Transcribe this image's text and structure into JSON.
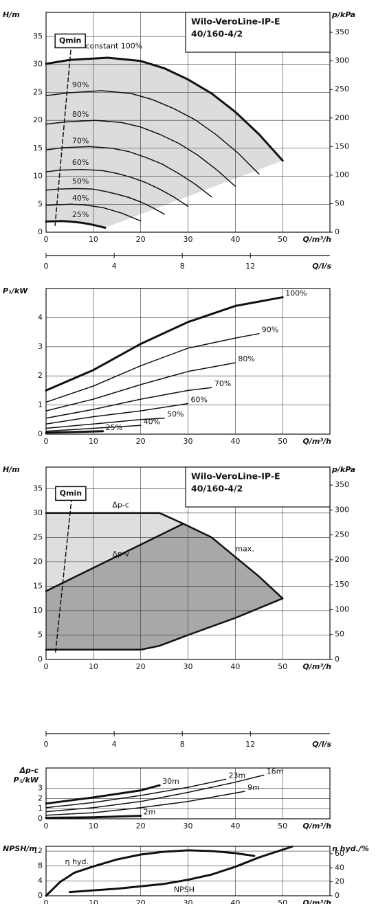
{
  "chart_data": [
    {
      "type": "line",
      "ylabel": "H/m",
      "y2label": "p/kPa",
      "xlabel": "Q/m³/h",
      "x2label": "Q/l/s",
      "xlim": [
        0,
        60
      ],
      "xticks": [
        0,
        10,
        20,
        30,
        40,
        50
      ],
      "x2lim": [
        0,
        16.67
      ],
      "x2ticks": [
        0,
        4,
        8,
        12
      ],
      "ylim": [
        0,
        39.3
      ],
      "yticks": [
        0,
        5,
        10,
        15,
        20,
        25,
        30,
        35
      ],
      "y2lim": [
        0,
        385
      ],
      "y2ticks": [
        0,
        50,
        100,
        150,
        200,
        250,
        300,
        350
      ],
      "grid": true,
      "info_box": [
        "Wilo-VeroLine-IP-E",
        "40/160-4/2"
      ],
      "series": [
        {
          "name": "n=constant 100%",
          "color": "#111111",
          "width": 3,
          "x": [
            0,
            5,
            13,
            20,
            25,
            30,
            35,
            40,
            45,
            50
          ],
          "values": [
            30.1,
            30.8,
            31.2,
            30.6,
            29.3,
            27.3,
            24.8,
            21.5,
            17.5,
            12.8
          ]
        },
        {
          "name": "90%",
          "color": "#111111",
          "width": 1.5,
          "x": [
            0,
            4.5,
            11.7,
            18,
            22.5,
            27,
            31.5,
            36,
            40.5,
            45
          ],
          "values": [
            24.4,
            24.9,
            25.3,
            24.8,
            23.7,
            22.1,
            20.1,
            17.4,
            14.2,
            10.4
          ]
        },
        {
          "name": "80%",
          "color": "#111111",
          "width": 1.5,
          "x": [
            0,
            4,
            10.4,
            16,
            20,
            24,
            28,
            32,
            36,
            40
          ],
          "values": [
            19.3,
            19.7,
            20,
            19.6,
            18.8,
            17.5,
            15.9,
            13.8,
            11.2,
            8.2
          ]
        },
        {
          "name": "70%",
          "color": "#111111",
          "width": 1.5,
          "x": [
            0,
            3.5,
            9.1,
            14,
            17.5,
            21,
            24.5,
            28,
            31.5,
            35
          ],
          "values": [
            14.7,
            15.1,
            15.3,
            15,
            14.4,
            13.4,
            12.2,
            10.5,
            8.6,
            6.3
          ]
        },
        {
          "name": "60%",
          "color": "#111111",
          "width": 1.5,
          "x": [
            0,
            3,
            7.8,
            12,
            15,
            18,
            21,
            24,
            27,
            30
          ],
          "values": [
            10.8,
            11.1,
            11.2,
            11,
            10.5,
            9.8,
            8.9,
            7.7,
            6.3,
            4.6
          ]
        },
        {
          "name": "50%",
          "color": "#111111",
          "width": 1.5,
          "x": [
            0,
            2.5,
            6.5,
            10,
            12.5,
            15,
            17.5,
            20,
            22.5,
            25
          ],
          "values": [
            7.5,
            7.7,
            7.8,
            7.7,
            7.3,
            6.8,
            6.2,
            5.4,
            4.4,
            3.2
          ]
        },
        {
          "name": "40%",
          "color": "#111111",
          "width": 1.5,
          "x": [
            0,
            5.2,
            8,
            12,
            16,
            20
          ],
          "values": [
            4.8,
            5,
            4.9,
            4.4,
            3.4,
            2
          ]
        },
        {
          "name": "25%",
          "color": "#111111",
          "width": 3,
          "x": [
            0,
            3.25,
            5,
            7.5,
            10,
            12.5
          ],
          "values": [
            1.9,
            2,
            1.9,
            1.7,
            1.3,
            0.8
          ]
        },
        {
          "name": "Qmin",
          "color": "#111111",
          "width": 1.5,
          "style": "dashed",
          "x": [
            1.9,
            5.4
          ],
          "values": [
            1.2,
            34.2
          ]
        }
      ]
    },
    {
      "type": "line",
      "ylabel": "P₁/kW",
      "xlabel": "Q/m³/h",
      "xlim": [
        0,
        60
      ],
      "xticks": [
        0,
        10,
        20,
        30,
        40,
        50
      ],
      "ylim": [
        0,
        5
      ],
      "yticks": [
        0,
        1,
        2,
        3,
        4
      ],
      "grid": true,
      "series": [
        {
          "name": "100%",
          "color": "#111111",
          "width": 3,
          "x": [
            0,
            10,
            20,
            30,
            40,
            50
          ],
          "values": [
            1.5,
            2.2,
            3.1,
            3.85,
            4.4,
            4.7
          ]
        },
        {
          "name": "90%",
          "color": "#111111",
          "width": 1.5,
          "x": [
            0,
            10,
            20,
            30,
            40,
            45
          ],
          "values": [
            1.1,
            1.65,
            2.35,
            2.95,
            3.3,
            3.45
          ]
        },
        {
          "name": "80%",
          "color": "#111111",
          "width": 1.5,
          "x": [
            0,
            10,
            20,
            30,
            40
          ],
          "values": [
            0.8,
            1.2,
            1.7,
            2.15,
            2.45
          ]
        },
        {
          "name": "70%",
          "color": "#111111",
          "width": 1.5,
          "x": [
            0,
            10,
            20,
            30,
            35
          ],
          "values": [
            0.55,
            0.85,
            1.2,
            1.5,
            1.6
          ]
        },
        {
          "name": "60%",
          "color": "#111111",
          "width": 1.5,
          "x": [
            0,
            10,
            20,
            30
          ],
          "values": [
            0.35,
            0.6,
            0.8,
            1.05
          ]
        },
        {
          "name": "50%",
          "color": "#111111",
          "width": 1.5,
          "x": [
            0,
            10,
            20,
            25
          ],
          "values": [
            0.2,
            0.35,
            0.5,
            0.55
          ]
        },
        {
          "name": "40%",
          "color": "#111111",
          "width": 1.5,
          "x": [
            0,
            10,
            20
          ],
          "values": [
            0.1,
            0.2,
            0.3
          ]
        },
        {
          "name": "25%",
          "color": "#111111",
          "width": 3,
          "x": [
            0,
            12
          ],
          "values": [
            0.05,
            0.1
          ]
        }
      ]
    },
    {
      "type": "line",
      "ylabel": "H/m",
      "y2label": "p/kPa",
      "xlabel": "Q/m³/h",
      "x2label": "Q/l/s",
      "xlim": [
        0,
        60
      ],
      "xticks": [
        0,
        10,
        20,
        30,
        40,
        50
      ],
      "x2lim": [
        0,
        16.67
      ],
      "x2ticks": [
        0,
        4,
        8,
        12
      ],
      "ylim": [
        0,
        39.4
      ],
      "yticks": [
        0,
        5,
        10,
        15,
        20,
        25,
        30,
        35
      ],
      "y2lim": [
        0,
        386
      ],
      "y2ticks": [
        0,
        50,
        100,
        150,
        200,
        250,
        300,
        350
      ],
      "grid": true,
      "info_box": [
        "Wilo-VeroLine-IP-E",
        "40/160-4/2"
      ],
      "series": [
        {
          "name": "Δp-c",
          "color": "#111111",
          "width": 2.5,
          "x": [
            0,
            24,
            29
          ],
          "values": [
            30,
            30,
            27.8
          ]
        },
        {
          "name": "Δp-v",
          "color": "#111111",
          "width": 2.5,
          "x": [
            0,
            29
          ],
          "values": [
            14,
            27.8
          ]
        },
        {
          "name": "max.",
          "color": "#111111",
          "width": 2.5,
          "x": [
            29,
            35,
            40,
            45,
            50
          ],
          "values": [
            27.8,
            25,
            21,
            17,
            12.5
          ]
        },
        {
          "color": "#111111",
          "width": 2.5,
          "x": [
            0,
            20,
            24,
            30,
            40,
            50
          ],
          "values": [
            2,
            2,
            2.8,
            5,
            8.5,
            12.5
          ]
        },
        {
          "name": "Qmin",
          "color": "#111111",
          "width": 1.5,
          "style": "dashed",
          "x": [
            2,
            5.5
          ],
          "values": [
            1.5,
            34
          ]
        }
      ]
    },
    {
      "type": "line",
      "ylabel_lines": [
        "Δp-c",
        "P₁/kW"
      ],
      "xlabel": "Q/m³/h",
      "xlim": [
        0,
        60
      ],
      "xticks": [
        0,
        10,
        20,
        30,
        40,
        50
      ],
      "ylim": [
        0,
        5
      ],
      "yticks": [
        0,
        1,
        2,
        3
      ],
      "grid": true,
      "series": [
        {
          "name": "30m",
          "color": "#111111",
          "width": 3,
          "x": [
            0,
            10,
            20,
            24
          ],
          "values": [
            1.5,
            2.1,
            2.8,
            3.3
          ]
        },
        {
          "name": "23m",
          "color": "#111111",
          "width": 1.5,
          "x": [
            0,
            10,
            20,
            30,
            38
          ],
          "values": [
            1.1,
            1.6,
            2.3,
            3.1,
            3.9
          ]
        },
        {
          "name": "16m",
          "color": "#111111",
          "width": 1.5,
          "x": [
            0,
            10,
            20,
            30,
            40,
            46
          ],
          "values": [
            0.7,
            1.1,
            1.7,
            2.6,
            3.6,
            4.3
          ]
        },
        {
          "name": "9m",
          "color": "#111111",
          "width": 1.5,
          "x": [
            0,
            10,
            20,
            30,
            42
          ],
          "values": [
            0.35,
            0.6,
            1.1,
            1.7,
            2.7
          ]
        },
        {
          "name": "2m",
          "color": "#111111",
          "width": 3,
          "x": [
            0,
            10,
            20
          ],
          "values": [
            0.1,
            0.15,
            0.3
          ]
        }
      ]
    },
    {
      "type": "line",
      "ylabel": "NPSH/m",
      "y2label": "η hyd./%",
      "xlabel": "Q/m³/h",
      "xlim": [
        0,
        60
      ],
      "xticks": [
        0,
        10,
        20,
        30,
        40,
        50
      ],
      "ylim": [
        0,
        13.3
      ],
      "yticks": [
        0,
        4,
        8,
        12
      ],
      "y2lim": [
        0,
        70.8
      ],
      "y2ticks": [
        0,
        20,
        40,
        60
      ],
      "grid": true,
      "series": [
        {
          "name": "η hyd.",
          "color": "#111111",
          "width": 3,
          "axis": "y2",
          "x": [
            0,
            3,
            6,
            10,
            15,
            20,
            25,
            30,
            35,
            40,
            44
          ],
          "values": [
            0,
            20,
            33,
            42,
            52,
            59,
            63,
            65,
            64,
            61,
            57
          ]
        },
        {
          "name": "NPSH",
          "color": "#111111",
          "width": 3,
          "x": [
            5,
            15,
            25,
            30,
            35,
            40,
            45,
            52
          ],
          "values": [
            1,
            1.9,
            3.2,
            4.3,
            5.7,
            7.8,
            10.3,
            13.2
          ]
        }
      ]
    }
  ]
}
